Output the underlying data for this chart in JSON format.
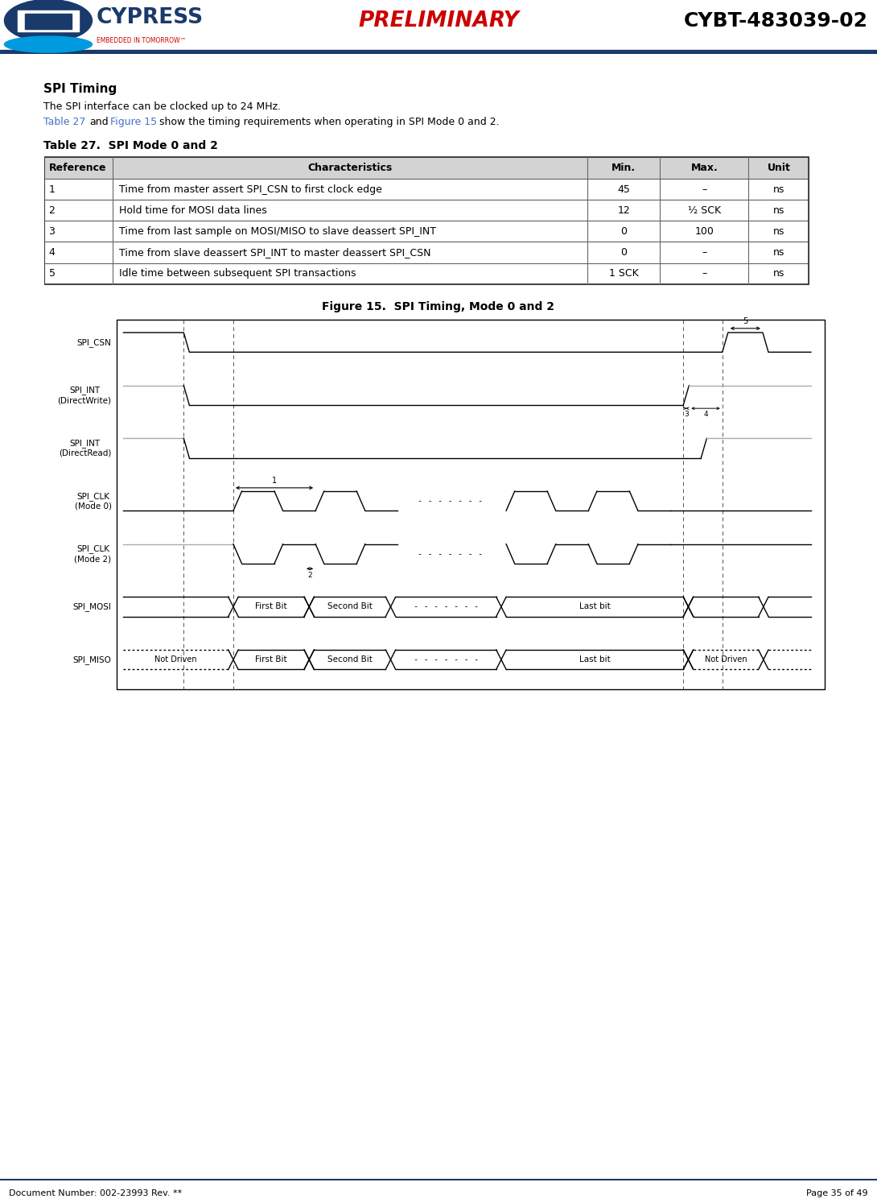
{
  "title_preliminary": "PRELIMINARY",
  "title_product": "CYBT-483039-02",
  "doc_number": "Document Number: 002-23993 Rev. **",
  "page_info": "Page 35 of 49",
  "section_title": "SPI Timing",
  "section_body": "The SPI interface can be clocked up to 24 MHz.",
  "table_title": "Table 27.  SPI Mode 0 and 2",
  "table_headers": [
    "Reference",
    "Characteristics",
    "Min.",
    "Max.",
    "Unit"
  ],
  "table_rows": [
    [
      "1",
      "Time from master assert SPI_CSN to first clock edge",
      "45",
      "–",
      "ns"
    ],
    [
      "2",
      "Hold time for MOSI data lines",
      "12",
      "½ SCK",
      "ns"
    ],
    [
      "3",
      "Time from last sample on MOSI/MISO to slave deassert SPI_INT",
      "0",
      "100",
      "ns"
    ],
    [
      "4",
      "Time from slave deassert SPI_INT to master deassert SPI_CSN",
      "0",
      "–",
      "ns"
    ],
    [
      "5",
      "Idle time between subsequent SPI transactions",
      "1 SCK",
      "–",
      "ns"
    ]
  ],
  "figure_title": "Figure 15.  SPI Timing, Mode 0 and 2",
  "signal_labels": [
    "SPI_CSN",
    "SPI_INT\n(DirectWrite)",
    "SPI_INT\n(DirectRead)",
    "SPI_CLK\n(Mode 0)",
    "SPI_CLK\n(Mode 2)",
    "SPI_MOSI",
    "SPI_MISO"
  ],
  "bg_color": "#ffffff",
  "table_header_bg": "#d3d3d3",
  "link_color": "#4472c4",
  "preliminary_color": "#cc0000",
  "header_dark_blue": "#1a3a6b",
  "header_line_color": "#1a3a6b"
}
